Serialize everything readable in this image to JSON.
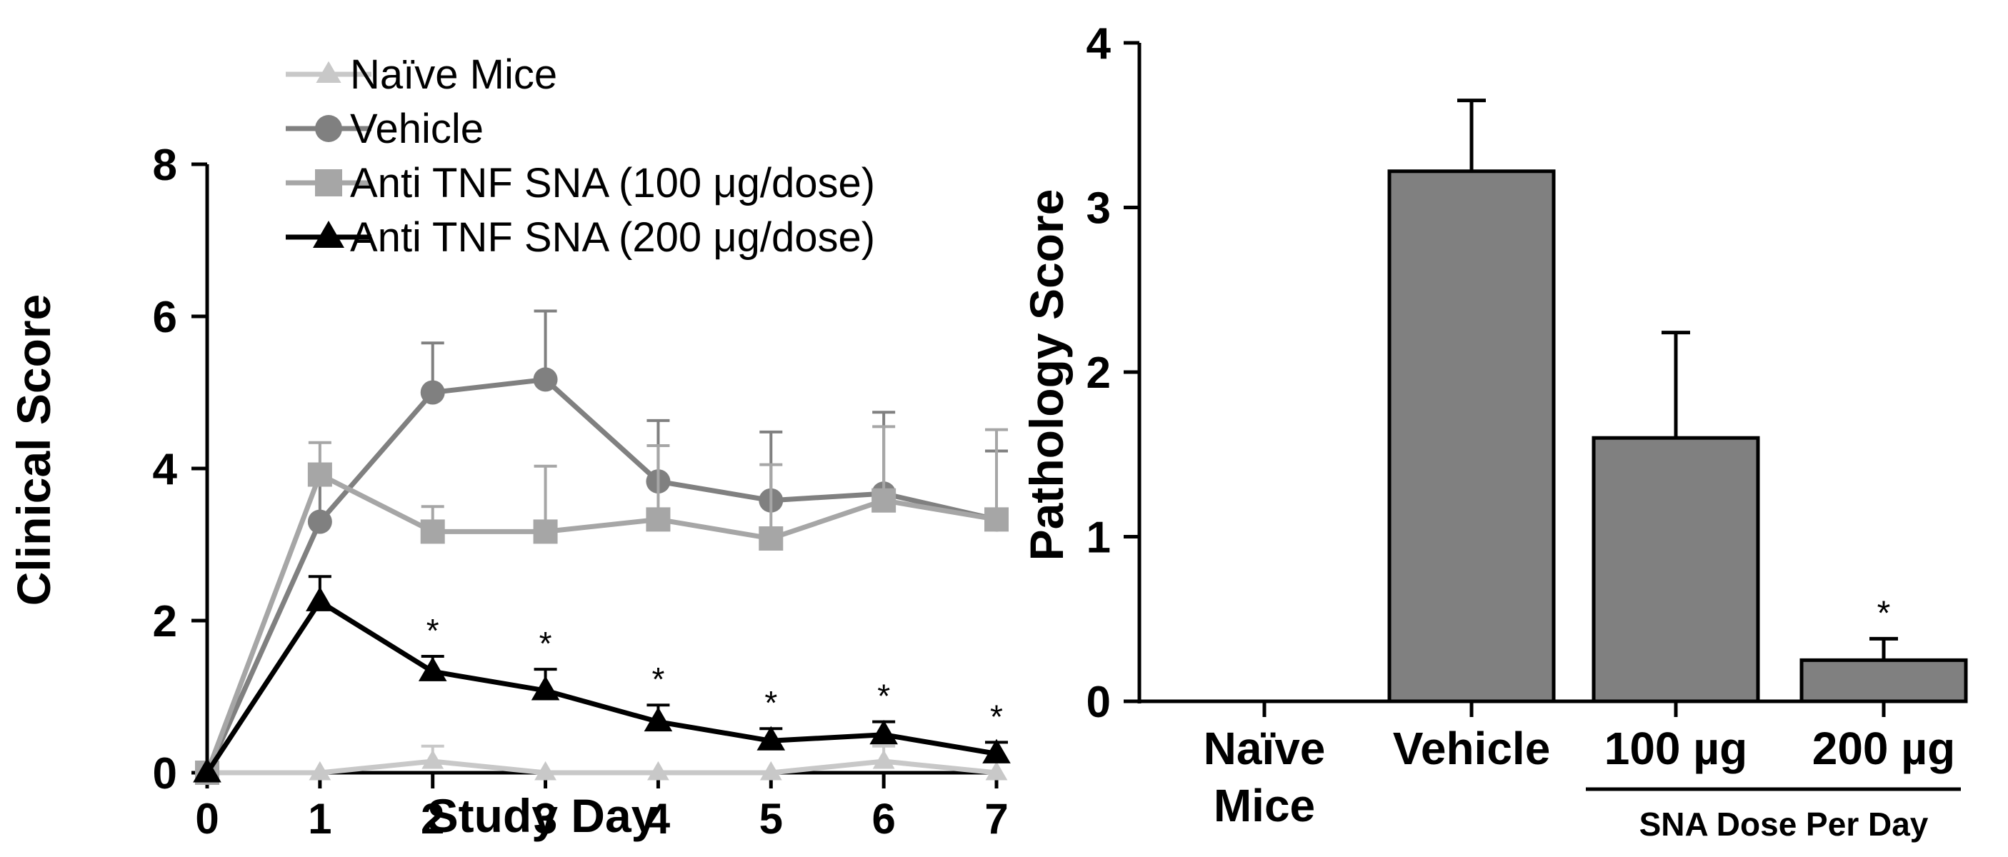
{
  "chart_data": [
    {
      "type": "line",
      "xlabel": "Study Day",
      "ylabel": "Clinical Score",
      "xlim": [
        0,
        7
      ],
      "ylim": [
        0,
        8
      ],
      "xticks": [
        "0",
        "1",
        "2",
        "3",
        "4",
        "5",
        "6",
        "7"
      ],
      "yticks": [
        "0",
        "2",
        "4",
        "6",
        "8"
      ],
      "x": [
        0,
        1,
        2,
        3,
        4,
        5,
        6,
        7
      ],
      "series": [
        {
          "name": "Naïve Mice",
          "color": "#c8c8c8",
          "marker": "triangle",
          "values": [
            0,
            0,
            0.15,
            0,
            0,
            0,
            0.15,
            0
          ],
          "errors": [
            0,
            0,
            0.2,
            0,
            0,
            0,
            0.2,
            0
          ]
        },
        {
          "name": "Vehicle",
          "color": "#808080",
          "marker": "circle",
          "values": [
            0,
            3.3,
            5.0,
            5.17,
            3.83,
            3.58,
            3.67,
            3.33
          ],
          "errors": [
            0,
            0.55,
            0.65,
            0.9,
            0.8,
            0.9,
            1.07,
            0.9
          ]
        },
        {
          "name": "Anti TNF SNA (100 μg/dose)",
          "color": "#a6a6a6",
          "marker": "square",
          "values": [
            0,
            3.92,
            3.17,
            3.17,
            3.33,
            3.08,
            3.58,
            3.33
          ],
          "errors": [
            0,
            0.42,
            0.33,
            0.86,
            0.97,
            0.97,
            0.97,
            1.18
          ]
        },
        {
          "name": "Anti TNF SNA (200 μg/dose)",
          "color": "#000000",
          "marker": "triangle",
          "values": [
            0,
            2.25,
            1.33,
            1.08,
            0.67,
            0.42,
            0.5,
            0.25
          ],
          "errors": [
            0,
            0.33,
            0.2,
            0.28,
            0.22,
            0.16,
            0.17,
            0.15
          ]
        }
      ],
      "significance": {
        "series": 3,
        "days": [
          2,
          3,
          4,
          5,
          6,
          7
        ],
        "label": "*"
      }
    },
    {
      "type": "bar",
      "ylabel": "Pathology Score",
      "ylim": [
        0,
        4
      ],
      "yticks": [
        "0",
        "1",
        "2",
        "3",
        "4"
      ],
      "categories": [
        {
          "line1": "Naïve",
          "line2": "Mice"
        },
        {
          "line1": "Vehicle",
          "line2": ""
        },
        {
          "line1": "100 µg",
          "line2": ""
        },
        {
          "line1": "200 µg",
          "line2": ""
        }
      ],
      "values": [
        0,
        3.22,
        1.6,
        0.25
      ],
      "errors": [
        0,
        0.43,
        0.64,
        0.13
      ],
      "bar_color": "#808080",
      "group_label": "SNA Dose Per Day",
      "significance": {
        "index": 3,
        "label": "*"
      }
    }
  ]
}
